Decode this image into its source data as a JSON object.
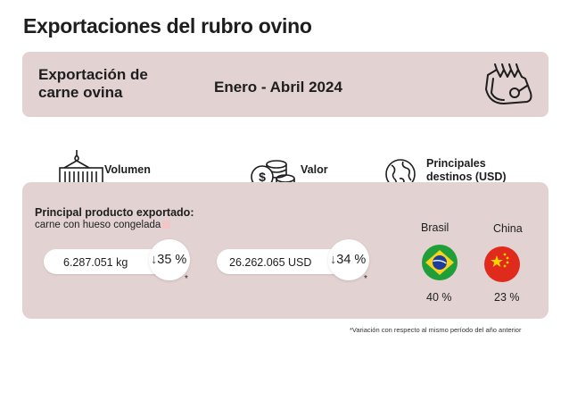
{
  "title": "Exportaciones del rubro ovino",
  "banner": {
    "label": "Exportación de carne ovina",
    "period": "Enero - Abril 2024",
    "icon": "lamb-rack-meat-icon"
  },
  "headers": {
    "volume": "Volumen",
    "value": "Valor",
    "destinations": "Principales destinos (USD)"
  },
  "product": {
    "title": "Principal producto exportado:",
    "name": "carne con hueso congelada"
  },
  "volume": {
    "amount": "6.287.051 kg",
    "change": "35 %",
    "direction": "down",
    "marker": "*"
  },
  "value": {
    "amount": "26.262.065 USD",
    "change": "34 %",
    "direction": "down",
    "marker": "*"
  },
  "destinations": [
    {
      "country": "Brasil",
      "share": "40 %",
      "flag": "brazil-flag-icon",
      "color": "#1f9e3a"
    },
    {
      "country": "China",
      "share": "23 %",
      "flag": "china-flag-icon",
      "color": "#e02a1c"
    }
  ],
  "footnote": "*Variación con respecto al mismo período del año anterior",
  "colors": {
    "panel": "#e3d2d2",
    "text": "#1e1e1e",
    "arrow": "#555555"
  }
}
